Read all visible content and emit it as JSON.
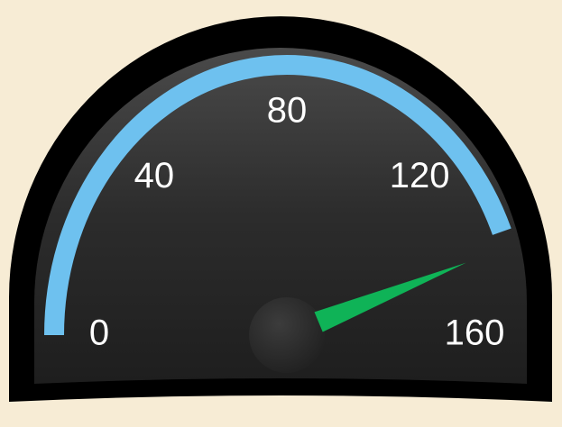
{
  "chart_data": {
    "type": "gauge",
    "min": 0,
    "max": 160,
    "value": 140,
    "ticks": [
      0,
      40,
      80,
      120,
      160
    ],
    "bands": [
      {
        "from": 0,
        "to": 140,
        "color": "#6ec1ef"
      }
    ],
    "needle_color": "#0fb357"
  }
}
